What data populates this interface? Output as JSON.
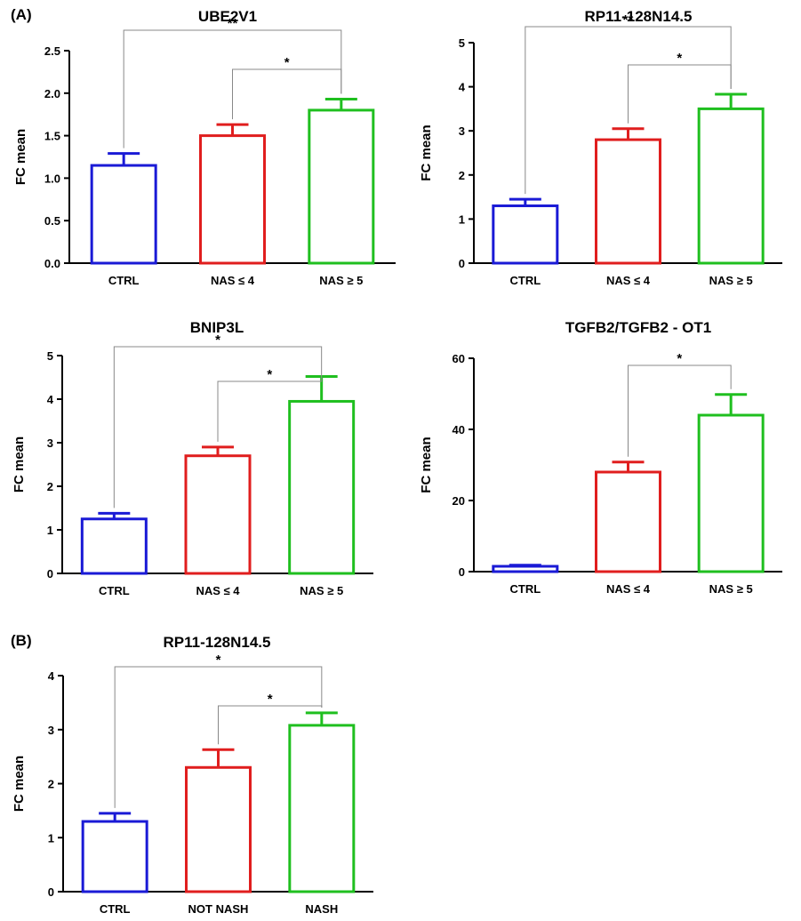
{
  "figure": {
    "panel_labels": [
      "(A)",
      "(B)"
    ]
  },
  "chart_data": [
    {
      "type": "bar",
      "panel": "(A)",
      "title": "UBE2V1",
      "ylabel": "FC mean",
      "xlabel": "",
      "categories": [
        "CTRL",
        "NAS ≤ 4",
        "NAS ≥ 5"
      ],
      "values": [
        1.15,
        1.5,
        1.8
      ],
      "errors": [
        0.14,
        0.13,
        0.13
      ],
      "colors": [
        "#1a1ad6",
        "#e01e1e",
        "#1fbf1f"
      ],
      "ylim": [
        0,
        2.5
      ],
      "yticks": [
        "0.0",
        "0.5",
        "1.0",
        "1.5",
        "2.0",
        "2.5"
      ],
      "ytick_values": [
        0,
        0.5,
        1.0,
        1.5,
        2.0,
        2.5
      ],
      "significance": [
        {
          "from": 0,
          "to": 2,
          "label": "**"
        },
        {
          "from": 1,
          "to": 2,
          "label": "*"
        }
      ]
    },
    {
      "type": "bar",
      "panel": "(A)",
      "title": "RP11-128N14.5",
      "ylabel": "FC mean",
      "xlabel": "",
      "categories": [
        "CTRL",
        "NAS ≤ 4",
        "NAS ≥ 5"
      ],
      "values": [
        1.3,
        2.8,
        3.5
      ],
      "errors": [
        0.15,
        0.25,
        0.33
      ],
      "colors": [
        "#1a1ad6",
        "#e01e1e",
        "#1fbf1f"
      ],
      "ylim": [
        0,
        5
      ],
      "yticks": [
        "0",
        "1",
        "2",
        "3",
        "4",
        "5"
      ],
      "ytick_values": [
        0,
        1,
        2,
        3,
        4,
        5
      ],
      "significance": [
        {
          "from": 0,
          "to": 2,
          "label": "**"
        },
        {
          "from": 1,
          "to": 2,
          "label": "*"
        }
      ]
    },
    {
      "type": "bar",
      "panel": "(A)",
      "title": "BNIP3L",
      "ylabel": "FC mean",
      "xlabel": "",
      "categories": [
        "CTRL",
        "NAS ≤ 4",
        "NAS ≥ 5"
      ],
      "values": [
        1.25,
        2.7,
        3.95
      ],
      "errors": [
        0.13,
        0.2,
        0.57
      ],
      "colors": [
        "#1a1ad6",
        "#e01e1e",
        "#1fbf1f"
      ],
      "ylim": [
        0,
        5
      ],
      "yticks": [
        "0",
        "1",
        "2",
        "3",
        "4",
        "5"
      ],
      "ytick_values": [
        0,
        1,
        2,
        3,
        4,
        5
      ],
      "significance": [
        {
          "from": 0,
          "to": 2,
          "label": "*"
        },
        {
          "from": 1,
          "to": 2,
          "label": "*"
        }
      ]
    },
    {
      "type": "bar",
      "panel": "(A)",
      "title": "TGFB2/TGFB2 - OT1",
      "ylabel": "FC mean",
      "xlabel": "",
      "categories": [
        "CTRL",
        "NAS ≤ 4",
        "NAS ≥ 5"
      ],
      "values": [
        1.5,
        28,
        44
      ],
      "errors": [
        0.3,
        2.8,
        5.8
      ],
      "colors": [
        "#1a1ad6",
        "#e01e1e",
        "#1fbf1f"
      ],
      "ylim": [
        0,
        60
      ],
      "yticks": [
        "0",
        "20",
        "40",
        "60"
      ],
      "ytick_values": [
        0,
        20,
        40,
        60
      ],
      "significance": [
        {
          "from": 1,
          "to": 2,
          "label": "*"
        }
      ]
    },
    {
      "type": "bar",
      "panel": "(B)",
      "title": "RP11-128N14.5",
      "ylabel": "FC mean",
      "xlabel": "",
      "categories": [
        "CTRL",
        "NOT NASH",
        "NASH"
      ],
      "values": [
        1.3,
        2.3,
        3.08
      ],
      "errors": [
        0.15,
        0.33,
        0.23
      ],
      "colors": [
        "#1a1ad6",
        "#e01e1e",
        "#1fbf1f"
      ],
      "ylim": [
        0,
        4
      ],
      "yticks": [
        "0",
        "1",
        "2",
        "3",
        "4"
      ],
      "ytick_values": [
        0,
        1,
        2,
        3,
        4
      ],
      "significance": [
        {
          "from": 0,
          "to": 2,
          "label": "*"
        },
        {
          "from": 1,
          "to": 2,
          "label": "*"
        }
      ]
    }
  ]
}
